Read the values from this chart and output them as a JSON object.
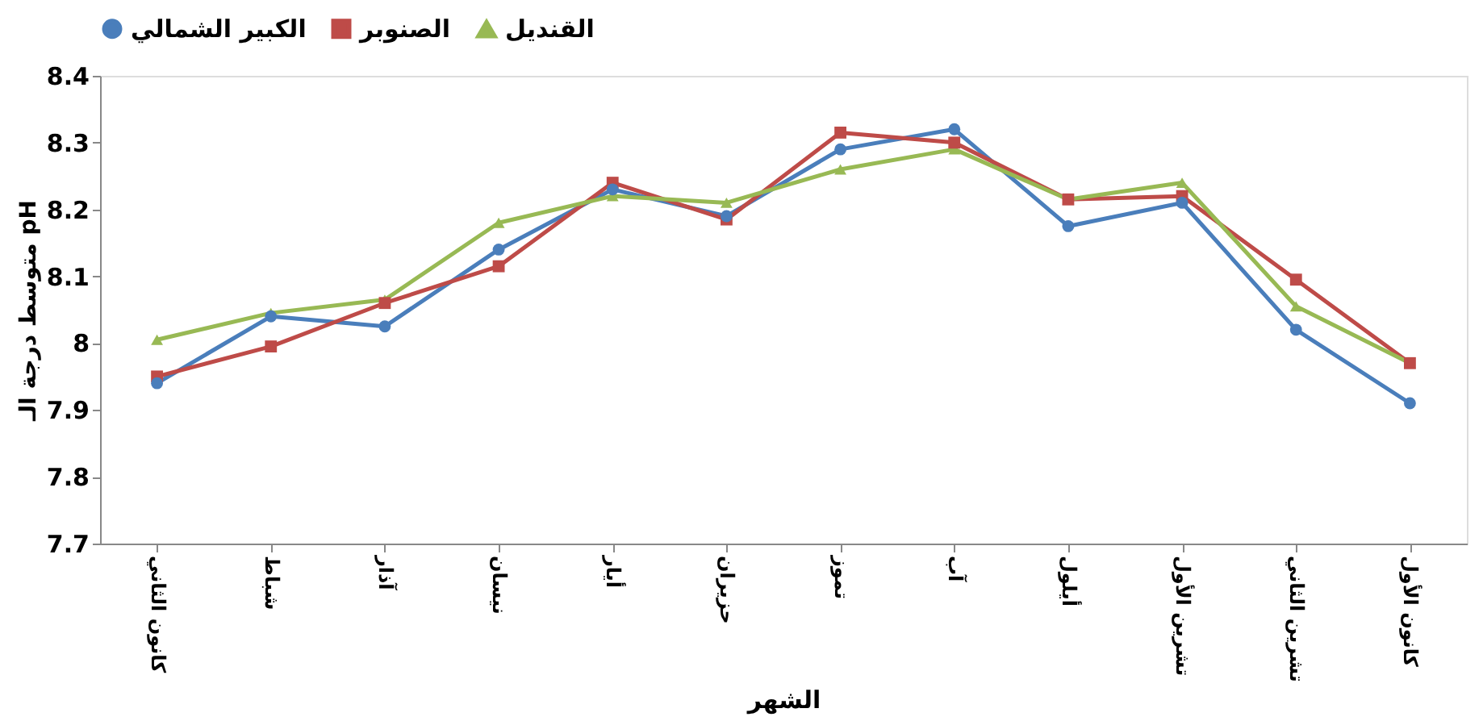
{
  "chart_data": {
    "type": "line",
    "xlabel": "الشهر",
    "ylabel": "متوسط درجة الـ pH",
    "categories": [
      "كانون الثاني",
      "شباط",
      "آذار",
      "نيسان",
      "أيار",
      "حزيران",
      "تموز",
      "آب",
      "أيلول",
      "تشرين الأول",
      "تشرين الثاني",
      "كانون الأول"
    ],
    "series": [
      {
        "name": "الكبير الشمالي",
        "color": "#4a7ebb",
        "marker": "circle",
        "values": [
          7.94,
          8.04,
          8.025,
          8.14,
          8.23,
          8.19,
          8.29,
          8.32,
          8.175,
          8.21,
          8.02,
          7.91
        ]
      },
      {
        "name": "الصنوبر",
        "color": "#be4b48",
        "marker": "square",
        "values": [
          7.95,
          7.995,
          8.06,
          8.115,
          8.24,
          8.185,
          8.315,
          8.3,
          8.215,
          8.22,
          8.095,
          7.97
        ]
      },
      {
        "name": "القنديل",
        "color": "#98b954",
        "marker": "triangle",
        "values": [
          8.005,
          8.045,
          8.065,
          8.18,
          8.22,
          8.21,
          8.26,
          8.29,
          8.215,
          8.24,
          8.055,
          7.97
        ]
      }
    ],
    "ylim": [
      7.7,
      8.4
    ],
    "yticks": [
      7.7,
      7.8,
      7.9,
      8,
      8.1,
      8.2,
      8.3,
      8.4
    ],
    "grid": false,
    "legend": "top",
    "line_style": "solid"
  }
}
